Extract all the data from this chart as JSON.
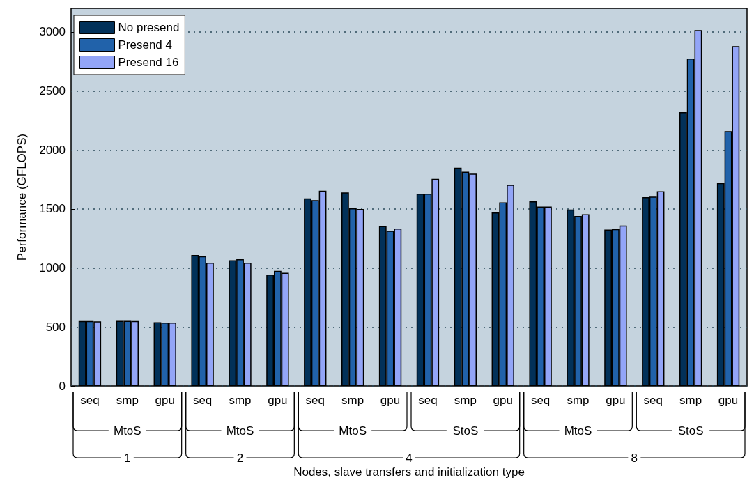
{
  "chart_data": {
    "type": "bar",
    "xlabel": "Nodes, slave transfers and initialization type",
    "ylabel": "Performance (GFLOPS)",
    "categories": [
      "seq",
      "smp",
      "gpu",
      "seq",
      "smp",
      "gpu",
      "seq",
      "smp",
      "gpu",
      "seq",
      "smp",
      "gpu",
      "seq",
      "smp",
      "gpu",
      "seq",
      "smp",
      "gpu"
    ],
    "series": [
      {
        "name": "No presend",
        "color": "#023159",
        "values": [
          550,
          552,
          540,
          1110,
          1065,
          945,
          1590,
          1640,
          1355,
          1630,
          1850,
          1470,
          1565,
          1495,
          1325,
          1600,
          2320,
          1720
        ]
      },
      {
        "name": "Presend 4",
        "color": "#2162aa",
        "values": [
          550,
          552,
          537,
          1100,
          1075,
          975,
          1575,
          1505,
          1315,
          1630,
          1815,
          1555,
          1520,
          1440,
          1330,
          1605,
          2775,
          2160
        ]
      },
      {
        "name": "Presend 16",
        "color": "#93a5f7",
        "values": [
          548,
          550,
          538,
          1045,
          1045,
          960,
          1655,
          1500,
          1335,
          1755,
          1800,
          1705,
          1520,
          1455,
          1360,
          1650,
          3015,
          2880
        ]
      }
    ],
    "annotations": [
      "MtoS",
      "MtoS",
      "MtoS",
      "StoS",
      "MtoS",
      "StoS",
      "1",
      "2",
      "4",
      "8"
    ],
    "ylim": [
      0,
      3200
    ],
    "yticks": [
      0,
      500,
      1000,
      1500,
      2000,
      2500,
      3000
    ],
    "grid": "y",
    "legend": "top left"
  }
}
